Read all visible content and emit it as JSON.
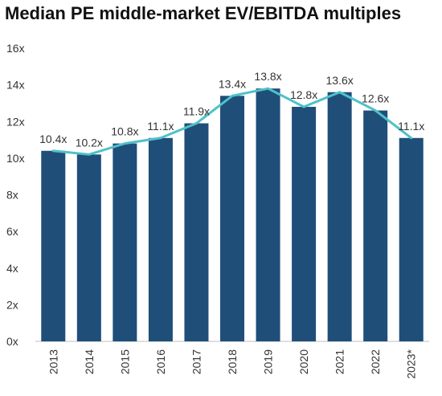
{
  "chart_data": {
    "type": "bar",
    "title": "Median PE middle-market EV/EBITDA multiples",
    "xlabel": "",
    "ylabel": "",
    "categories": [
      "2013",
      "2014",
      "2015",
      "2016",
      "2017",
      "2018",
      "2019",
      "2020",
      "2021",
      "2022",
      "2023*"
    ],
    "series": [
      {
        "type": "bar",
        "values": [
          10.4,
          10.2,
          10.8,
          11.1,
          11.9,
          13.4,
          13.8,
          12.8,
          13.6,
          12.6,
          11.1
        ],
        "color": "#1f4e79"
      },
      {
        "type": "line",
        "values": [
          10.4,
          10.2,
          10.8,
          11.1,
          11.9,
          13.4,
          13.8,
          12.8,
          13.6,
          12.6,
          11.1
        ],
        "color": "#4fc1c9"
      }
    ],
    "data_labels": [
      "10.4x",
      "10.2x",
      "10.8x",
      "11.1x",
      "11.9x",
      "13.4x",
      "13.8x",
      "12.8x",
      "13.6x",
      "12.6x",
      "11.1x"
    ],
    "yticks": [
      0,
      2,
      4,
      6,
      8,
      10,
      12,
      14,
      16
    ],
    "ytick_labels": [
      "0x",
      "2x",
      "4x",
      "6x",
      "8x",
      "10x",
      "12x",
      "14x",
      "16x"
    ],
    "ylim": [
      0,
      16
    ],
    "grid": false,
    "legend": "none"
  }
}
